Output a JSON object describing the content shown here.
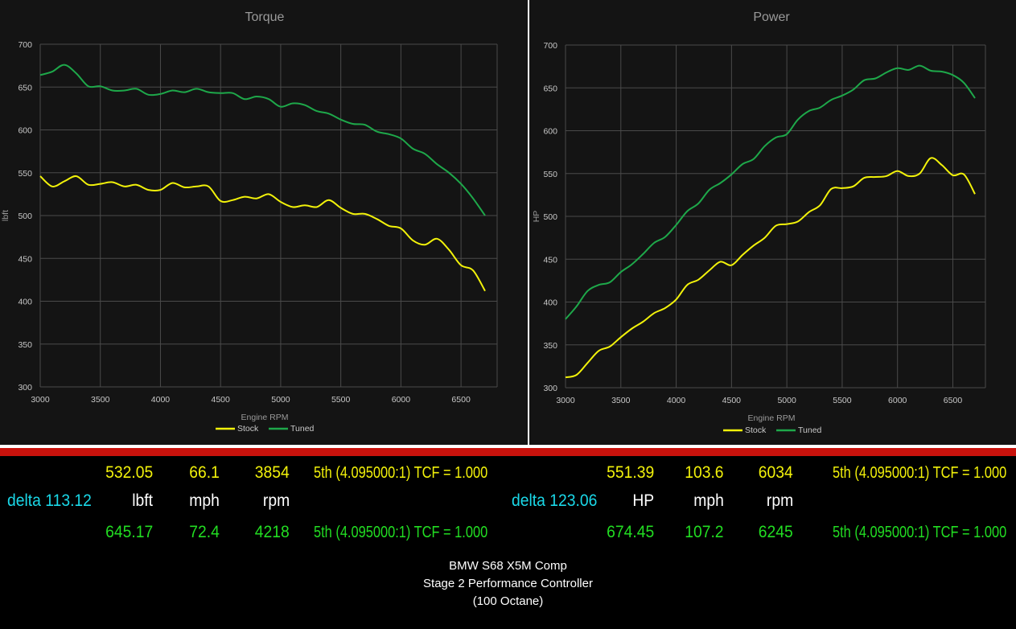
{
  "colors": {
    "stock": "#f2f20a",
    "tuned": "#1ea84a",
    "readout_stock": "#f2f20a",
    "readout_tuned": "#22dd22",
    "delta": "#1ad8e8",
    "red_bar": "#c8120c"
  },
  "chart_data": [
    {
      "type": "line",
      "title": "Torque",
      "xlabel": "Engine RPM",
      "ylabel": "lbft",
      "xlim": [
        3000,
        6700
      ],
      "ylim": [
        300,
        700
      ],
      "xticks": [
        3000,
        3500,
        4000,
        4500,
        5000,
        5500,
        6000,
        6500
      ],
      "yticks": [
        300,
        350,
        400,
        450,
        500,
        550,
        600,
        650,
        700
      ],
      "grid": true,
      "legend": "bottom-center",
      "series": [
        {
          "name": "Stock",
          "color": "#f2f20a",
          "x": [
            3000,
            3100,
            3200,
            3300,
            3400,
            3500,
            3600,
            3700,
            3800,
            3900,
            4000,
            4100,
            4200,
            4300,
            4400,
            4500,
            4600,
            4700,
            4800,
            4900,
            5000,
            5100,
            5200,
            5300,
            5400,
            5500,
            5600,
            5700,
            5800,
            5900,
            6000,
            6100,
            6200,
            6300,
            6400,
            6500,
            6600,
            6700
          ],
          "y": [
            546,
            534,
            540,
            546,
            536,
            537,
            539,
            534,
            536,
            530,
            530,
            538,
            533,
            534,
            534,
            517,
            518,
            522,
            520,
            525,
            516,
            510,
            512,
            510,
            518,
            509,
            502,
            502,
            496,
            488,
            485,
            471,
            466,
            473,
            460,
            442,
            436,
            412
          ]
        },
        {
          "name": "Tuned",
          "color": "#1ea84a",
          "x": [
            3000,
            3100,
            3200,
            3300,
            3400,
            3500,
            3600,
            3700,
            3800,
            3900,
            4000,
            4100,
            4200,
            4300,
            4400,
            4500,
            4600,
            4700,
            4800,
            4900,
            5000,
            5100,
            5200,
            5300,
            5400,
            5500,
            5600,
            5700,
            5800,
            5900,
            6000,
            6100,
            6200,
            6300,
            6400,
            6500,
            6600,
            6700
          ],
          "y": [
            664,
            668,
            676,
            666,
            651,
            651,
            646,
            646,
            648,
            641,
            642,
            646,
            644,
            648,
            644,
            643,
            643,
            636,
            639,
            636,
            627,
            631,
            629,
            622,
            619,
            612,
            607,
            606,
            598,
            595,
            590,
            578,
            572,
            560,
            550,
            537,
            520,
            500
          ]
        }
      ]
    },
    {
      "type": "line",
      "title": "Power",
      "xlabel": "Engine RPM",
      "ylabel": "HP",
      "xlim": [
        3000,
        6700
      ],
      "ylim": [
        300,
        700
      ],
      "xticks": [
        3000,
        3500,
        4000,
        4500,
        5000,
        5500,
        6000,
        6500
      ],
      "yticks": [
        300,
        350,
        400,
        450,
        500,
        550,
        600,
        650,
        700
      ],
      "grid": true,
      "legend": "bottom-center",
      "series": [
        {
          "name": "Stock",
          "color": "#f2f20a",
          "x": [
            3000,
            3100,
            3200,
            3300,
            3400,
            3500,
            3600,
            3700,
            3800,
            3900,
            4000,
            4100,
            4200,
            4300,
            4400,
            4500,
            4600,
            4700,
            4800,
            4900,
            5000,
            5100,
            5200,
            5300,
            5400,
            5500,
            5600,
            5700,
            5800,
            5900,
            6000,
            6100,
            6200,
            6300,
            6400,
            6500,
            6600,
            6700
          ],
          "y": [
            312,
            315,
            329,
            343,
            348,
            359,
            369,
            377,
            387,
            393,
            403,
            420,
            426,
            437,
            447,
            443,
            455,
            466,
            475,
            489,
            491,
            494,
            505,
            513,
            532,
            533,
            535,
            545,
            546,
            547,
            553,
            547,
            550,
            568,
            560,
            548,
            549,
            526
          ]
        },
        {
          "name": "Tuned",
          "color": "#1ea84a",
          "x": [
            3000,
            3100,
            3200,
            3300,
            3400,
            3500,
            3600,
            3700,
            3800,
            3900,
            4000,
            4100,
            4200,
            4300,
            4400,
            4500,
            4600,
            4700,
            4800,
            4900,
            5000,
            5100,
            5200,
            5300,
            5400,
            5500,
            5600,
            5700,
            5800,
            5900,
            6000,
            6100,
            6200,
            6300,
            6400,
            6500,
            6600,
            6700
          ],
          "y": [
            380,
            395,
            413,
            420,
            423,
            435,
            444,
            456,
            469,
            476,
            490,
            506,
            515,
            531,
            539,
            549,
            561,
            567,
            582,
            592,
            596,
            613,
            623,
            627,
            636,
            641,
            648,
            659,
            661,
            668,
            673,
            671,
            676,
            670,
            669,
            665,
            656,
            638
          ]
        }
      ]
    }
  ],
  "readouts": {
    "left": {
      "stock": {
        "value": "532.05",
        "mph": "66.1",
        "rpm": "3854",
        "gear": "5th (4.095000:1) TCF = 1.000"
      },
      "delta": {
        "label": "delta 113.12",
        "unit": "lbft",
        "mph_label": "mph",
        "rpm_label": "rpm"
      },
      "tuned": {
        "value": "645.17",
        "mph": "72.4",
        "rpm": "4218",
        "gear": "5th (4.095000:1) TCF = 1.000"
      }
    },
    "right": {
      "stock": {
        "value": "551.39",
        "mph": "103.6",
        "rpm": "6034",
        "gear": "5th (4.095000:1) TCF = 1.000"
      },
      "delta": {
        "label": "delta 123.06",
        "unit": "HP",
        "mph_label": "mph",
        "rpm_label": "rpm"
      },
      "tuned": {
        "value": "674.45",
        "mph": "107.2",
        "rpm": "6245",
        "gear": "5th (4.095000:1) TCF = 1.000"
      }
    }
  },
  "footer": {
    "line1": "BMW S68 X5M Comp",
    "line2": "Stage 2 Performance Controller",
    "line3": "(100 Octane)"
  }
}
